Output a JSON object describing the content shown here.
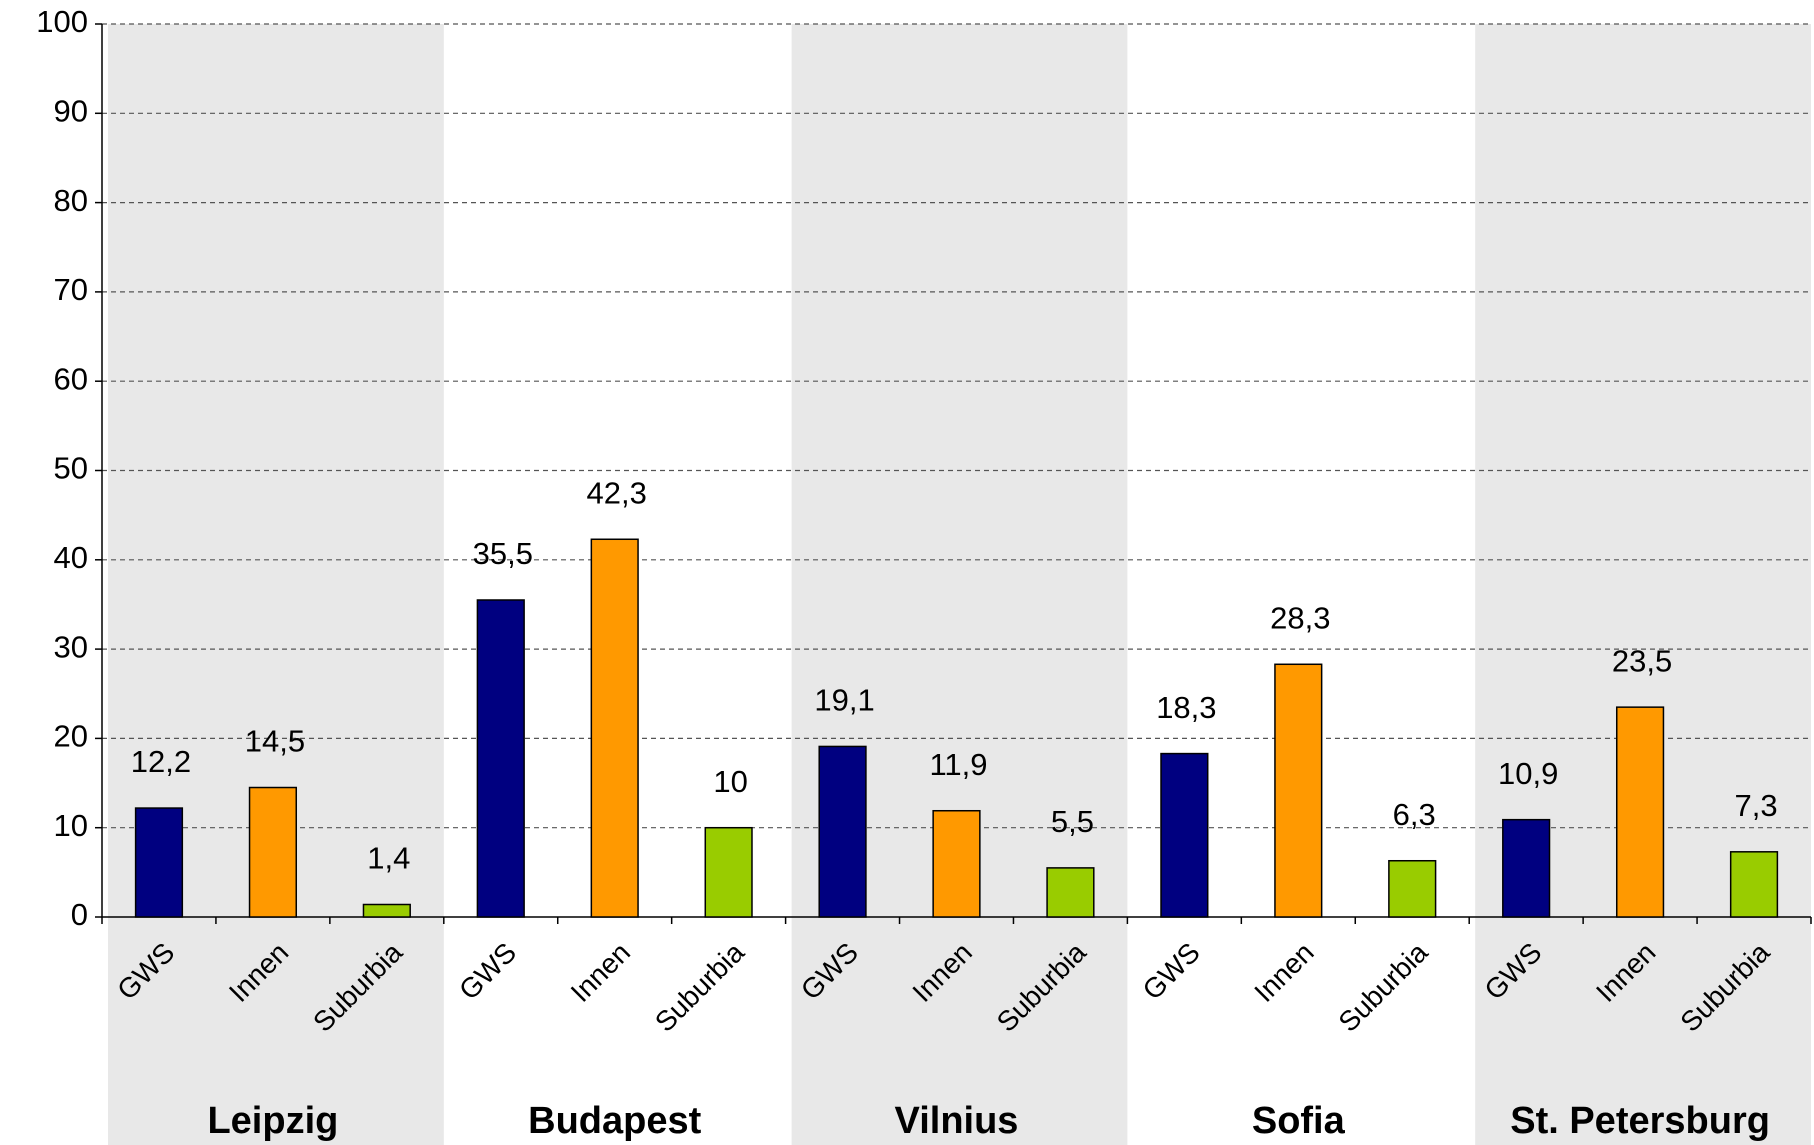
{
  "chart_data": {
    "type": "bar",
    "groups": [
      "Leipzig",
      "Budapest",
      "Vilnius",
      "Sofia",
      "St. Petersburg"
    ],
    "series": [
      {
        "name": "GWS",
        "color": "#000080",
        "values": [
          12.2,
          35.5,
          19.1,
          18.3,
          10.9
        ],
        "value_labels": [
          "12,2",
          "35,5",
          "19,1",
          "18,3",
          "10,9"
        ]
      },
      {
        "name": "Innen",
        "color": "#ff9900",
        "values": [
          14.5,
          42.3,
          11.9,
          28.3,
          23.5
        ],
        "value_labels": [
          "14,5",
          "42,3",
          "11,9",
          "28,3",
          "23,5"
        ]
      },
      {
        "name": "Suburbia",
        "color": "#99cc00",
        "values": [
          1.4,
          10,
          5.5,
          6.3,
          7.3
        ],
        "value_labels": [
          "1,4",
          "10",
          "5,5",
          "6,3",
          "7,3"
        ]
      }
    ],
    "band_color": "#e8e8e8",
    "ylim": [
      0,
      100
    ],
    "yticks": [
      0,
      10,
      20,
      30,
      40,
      50,
      60,
      70,
      80,
      90,
      100
    ],
    "grid": true
  }
}
